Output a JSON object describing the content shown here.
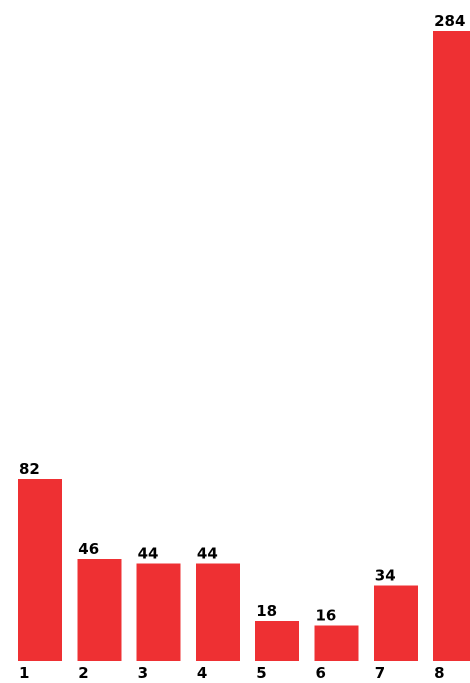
{
  "chart_data": {
    "type": "bar",
    "categories": [
      "1",
      "2",
      "3",
      "4",
      "5",
      "6",
      "7",
      "8"
    ],
    "values": [
      82,
      46,
      44,
      44,
      18,
      16,
      34,
      284
    ],
    "title": "",
    "xlabel": "",
    "ylabel": "",
    "ylim": [
      0,
      284
    ],
    "grid": false,
    "legend": "none"
  },
  "colors": {
    "bar": "#ee3033",
    "text": "#000000",
    "background": "#ffffff"
  }
}
